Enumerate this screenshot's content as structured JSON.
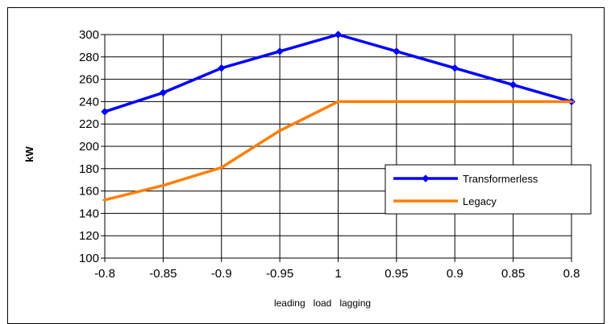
{
  "chart_data": {
    "type": "line",
    "categories": [
      "-0.8",
      "-0.85",
      "-0.9",
      "-0.95",
      "1",
      "0.95",
      "0.9",
      "0.85",
      "0.8"
    ],
    "series": [
      {
        "name": "Transformerless",
        "values": [
          231,
          248,
          270,
          285,
          300,
          285,
          270,
          255,
          240
        ],
        "color": "#0000ff",
        "marker": "diamond"
      },
      {
        "name": "Legacy",
        "values": [
          152,
          165,
          181,
          214,
          240,
          240,
          240,
          240,
          240
        ],
        "color": "#ff7f00",
        "marker": "dash"
      }
    ],
    "title": "",
    "xlabel": "leading   load   lagging",
    "ylabel": "kW",
    "ylim": [
      100,
      300
    ],
    "yticks": [
      100,
      120,
      140,
      160,
      180,
      200,
      220,
      240,
      260,
      280,
      300
    ],
    "grid": true,
    "legend_position": "lower-right"
  }
}
